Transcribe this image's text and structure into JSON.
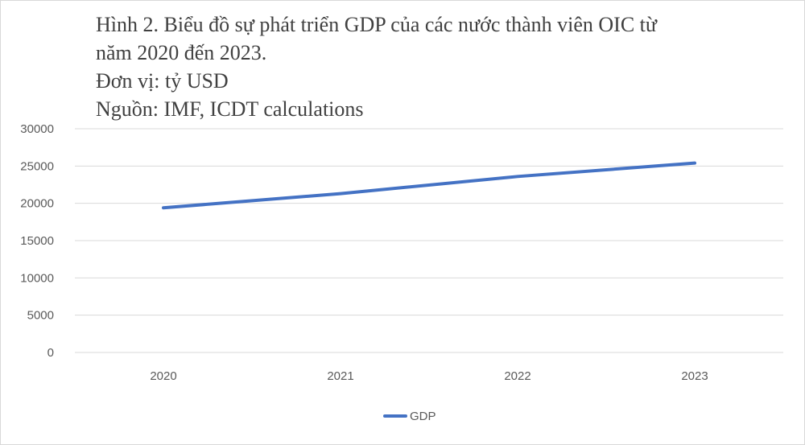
{
  "title_lines": [
    "Hình 2. Biểu đồ sự phát triển GDP của các nước thành viên OIC từ",
    "năm 2020 đến 2023.",
    "Đơn vị: tỷ USD",
    "Nguồn: IMF, ICDT calculations"
  ],
  "chart_data": {
    "type": "line",
    "title": "Hình 2. Biểu đồ sự phát triển GDP của các nước thành viên OIC từ năm 2020 đến 2023.",
    "subtitle": "Đơn vị: tỷ USD; Nguồn: IMF, ICDT calculations",
    "xlabel": "",
    "ylabel": "",
    "categories": [
      "2020",
      "2021",
      "2022",
      "2023"
    ],
    "series": [
      {
        "name": "GDP",
        "values": [
          19400,
          21300,
          23600,
          25400
        ],
        "color": "#4472c4"
      }
    ],
    "ylim": [
      0,
      30000
    ],
    "yticks": [
      "0",
      "5000",
      "10000",
      "15000",
      "20000",
      "25000",
      "30000"
    ],
    "grid": true,
    "legend": "bottom"
  }
}
